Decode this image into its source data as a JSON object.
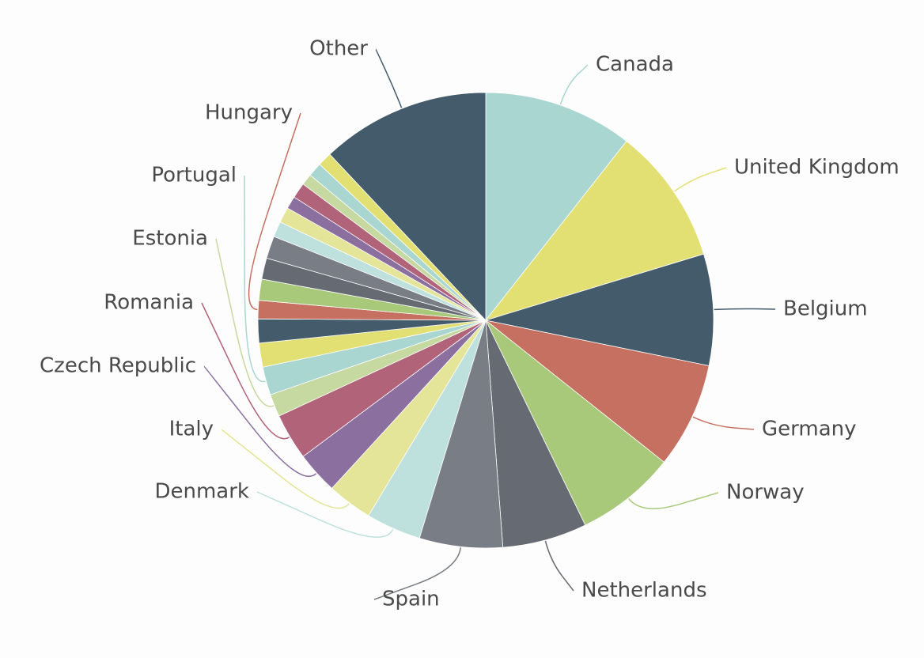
{
  "chart_data": {
    "type": "pie",
    "categories": [
      "Canada",
      "United Kingdom",
      "Belgium",
      "Germany",
      "Norway",
      "Netherlands",
      "Spain",
      "Denmark",
      "Italy",
      "Czech Republic",
      "Romania",
      "Estonia",
      "Portugal",
      null,
      null,
      "Hungary",
      null,
      null,
      null,
      null,
      null,
      null,
      null,
      null,
      null,
      null,
      "Other"
    ],
    "values": [
      10.6,
      9.7,
      7.9,
      7.5,
      7.1,
      6.0,
      5.9,
      3.9,
      3.2,
      3.0,
      3.3,
      1.6,
      2.0,
      1.7,
      1.7,
      1.3,
      1.5,
      1.5,
      1.6,
      1.1,
      1.1,
      0.9,
      1.1,
      0.8,
      1.0,
      1.0,
      12.0
    ],
    "colors": [
      "#a9d6d1",
      "#e3e073",
      "#435b6a",
      "#c57061",
      "#a8c97a",
      "#666a73",
      "#787d86",
      "#bfe1de",
      "#e5e599",
      "#8b6f9f",
      "#b06379",
      "#c6d9a0",
      "#a9d6d1",
      "#e3e073",
      "#435b6a",
      "#c57061",
      "#a8c97a",
      "#666a73",
      "#787d86",
      "#bfe1de",
      "#e5e599",
      "#8b6f9f",
      "#b06379",
      "#c6d9a0",
      "#a9d6d1",
      "#e3e073",
      "#435b6a"
    ]
  }
}
